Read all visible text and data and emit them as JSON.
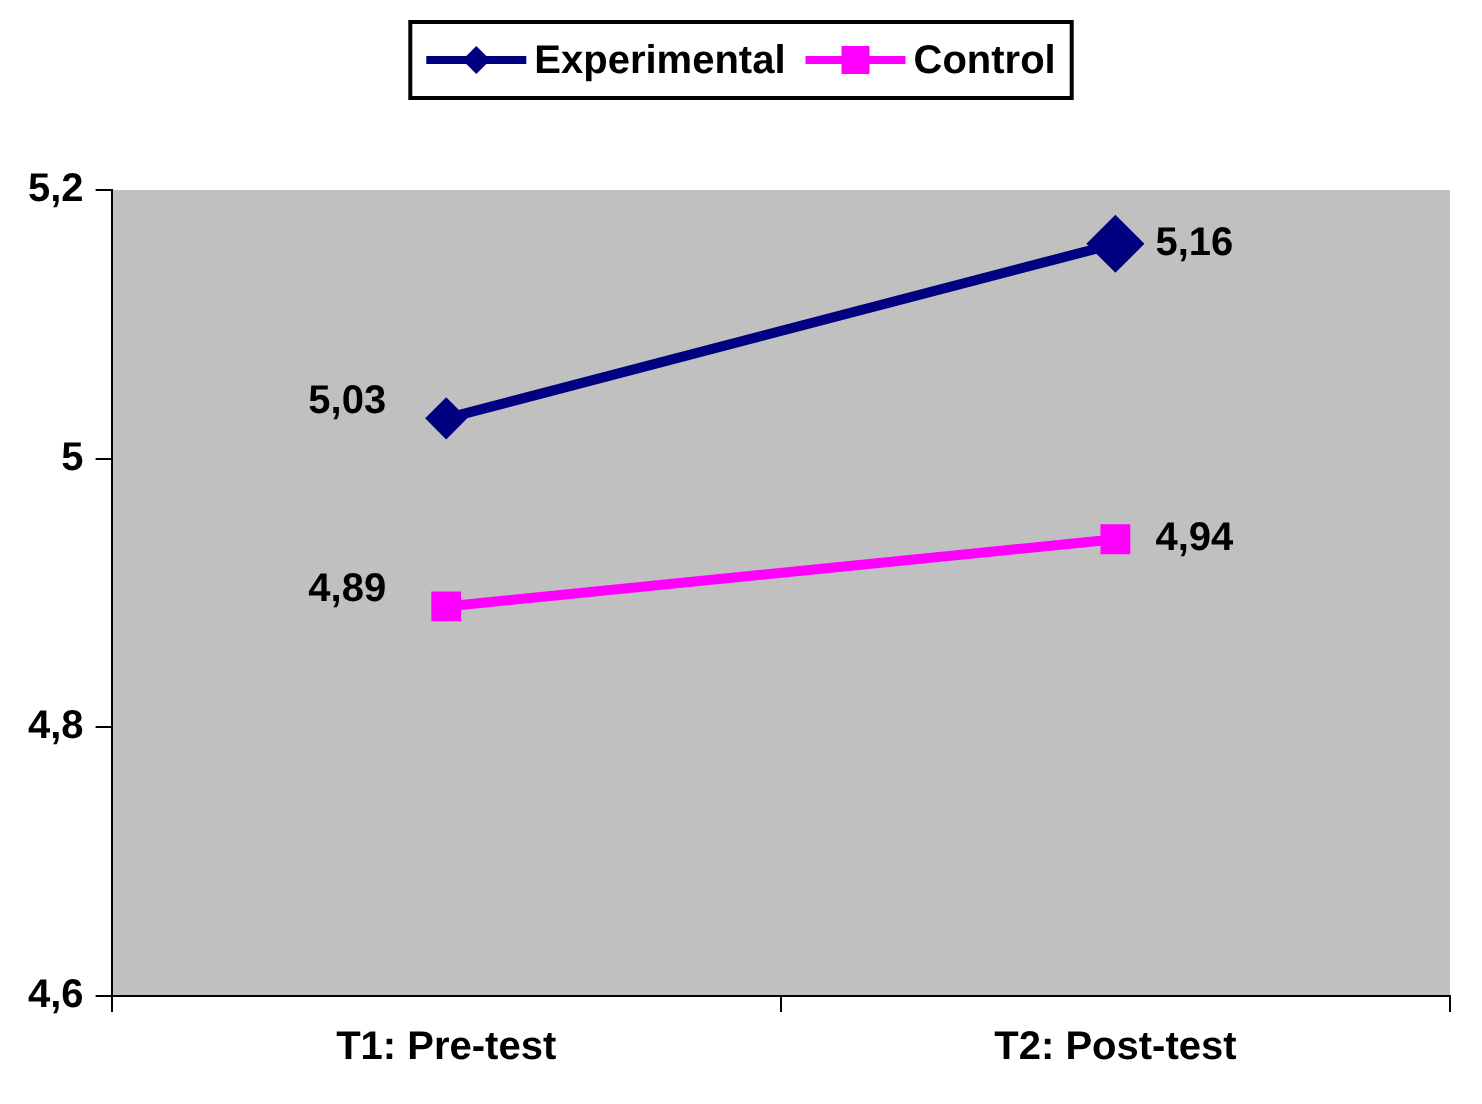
{
  "chart_data": {
    "type": "line",
    "categories": [
      "T1: Pre-test",
      "T2: Post-test"
    ],
    "series": [
      {
        "name": "Experimental",
        "color": "#000080",
        "marker": "diamond",
        "values": [
          5.03,
          5.16
        ],
        "value_labels": [
          "5,03",
          "5,16"
        ]
      },
      {
        "name": "Control",
        "color": "#ff00ff",
        "marker": "square",
        "values": [
          4.89,
          4.94
        ],
        "value_labels": [
          "4,89",
          "4,94"
        ]
      }
    ],
    "ylim": [
      4.6,
      5.2
    ],
    "yticks": [
      {
        "value": 4.6,
        "label": "4,6"
      },
      {
        "value": 4.8,
        "label": "4,8"
      },
      {
        "value": 5,
        "label": "5"
      },
      {
        "value": 5.2,
        "label": "5,2"
      }
    ],
    "grid": false,
    "legend": "top",
    "line_style": "solid"
  }
}
